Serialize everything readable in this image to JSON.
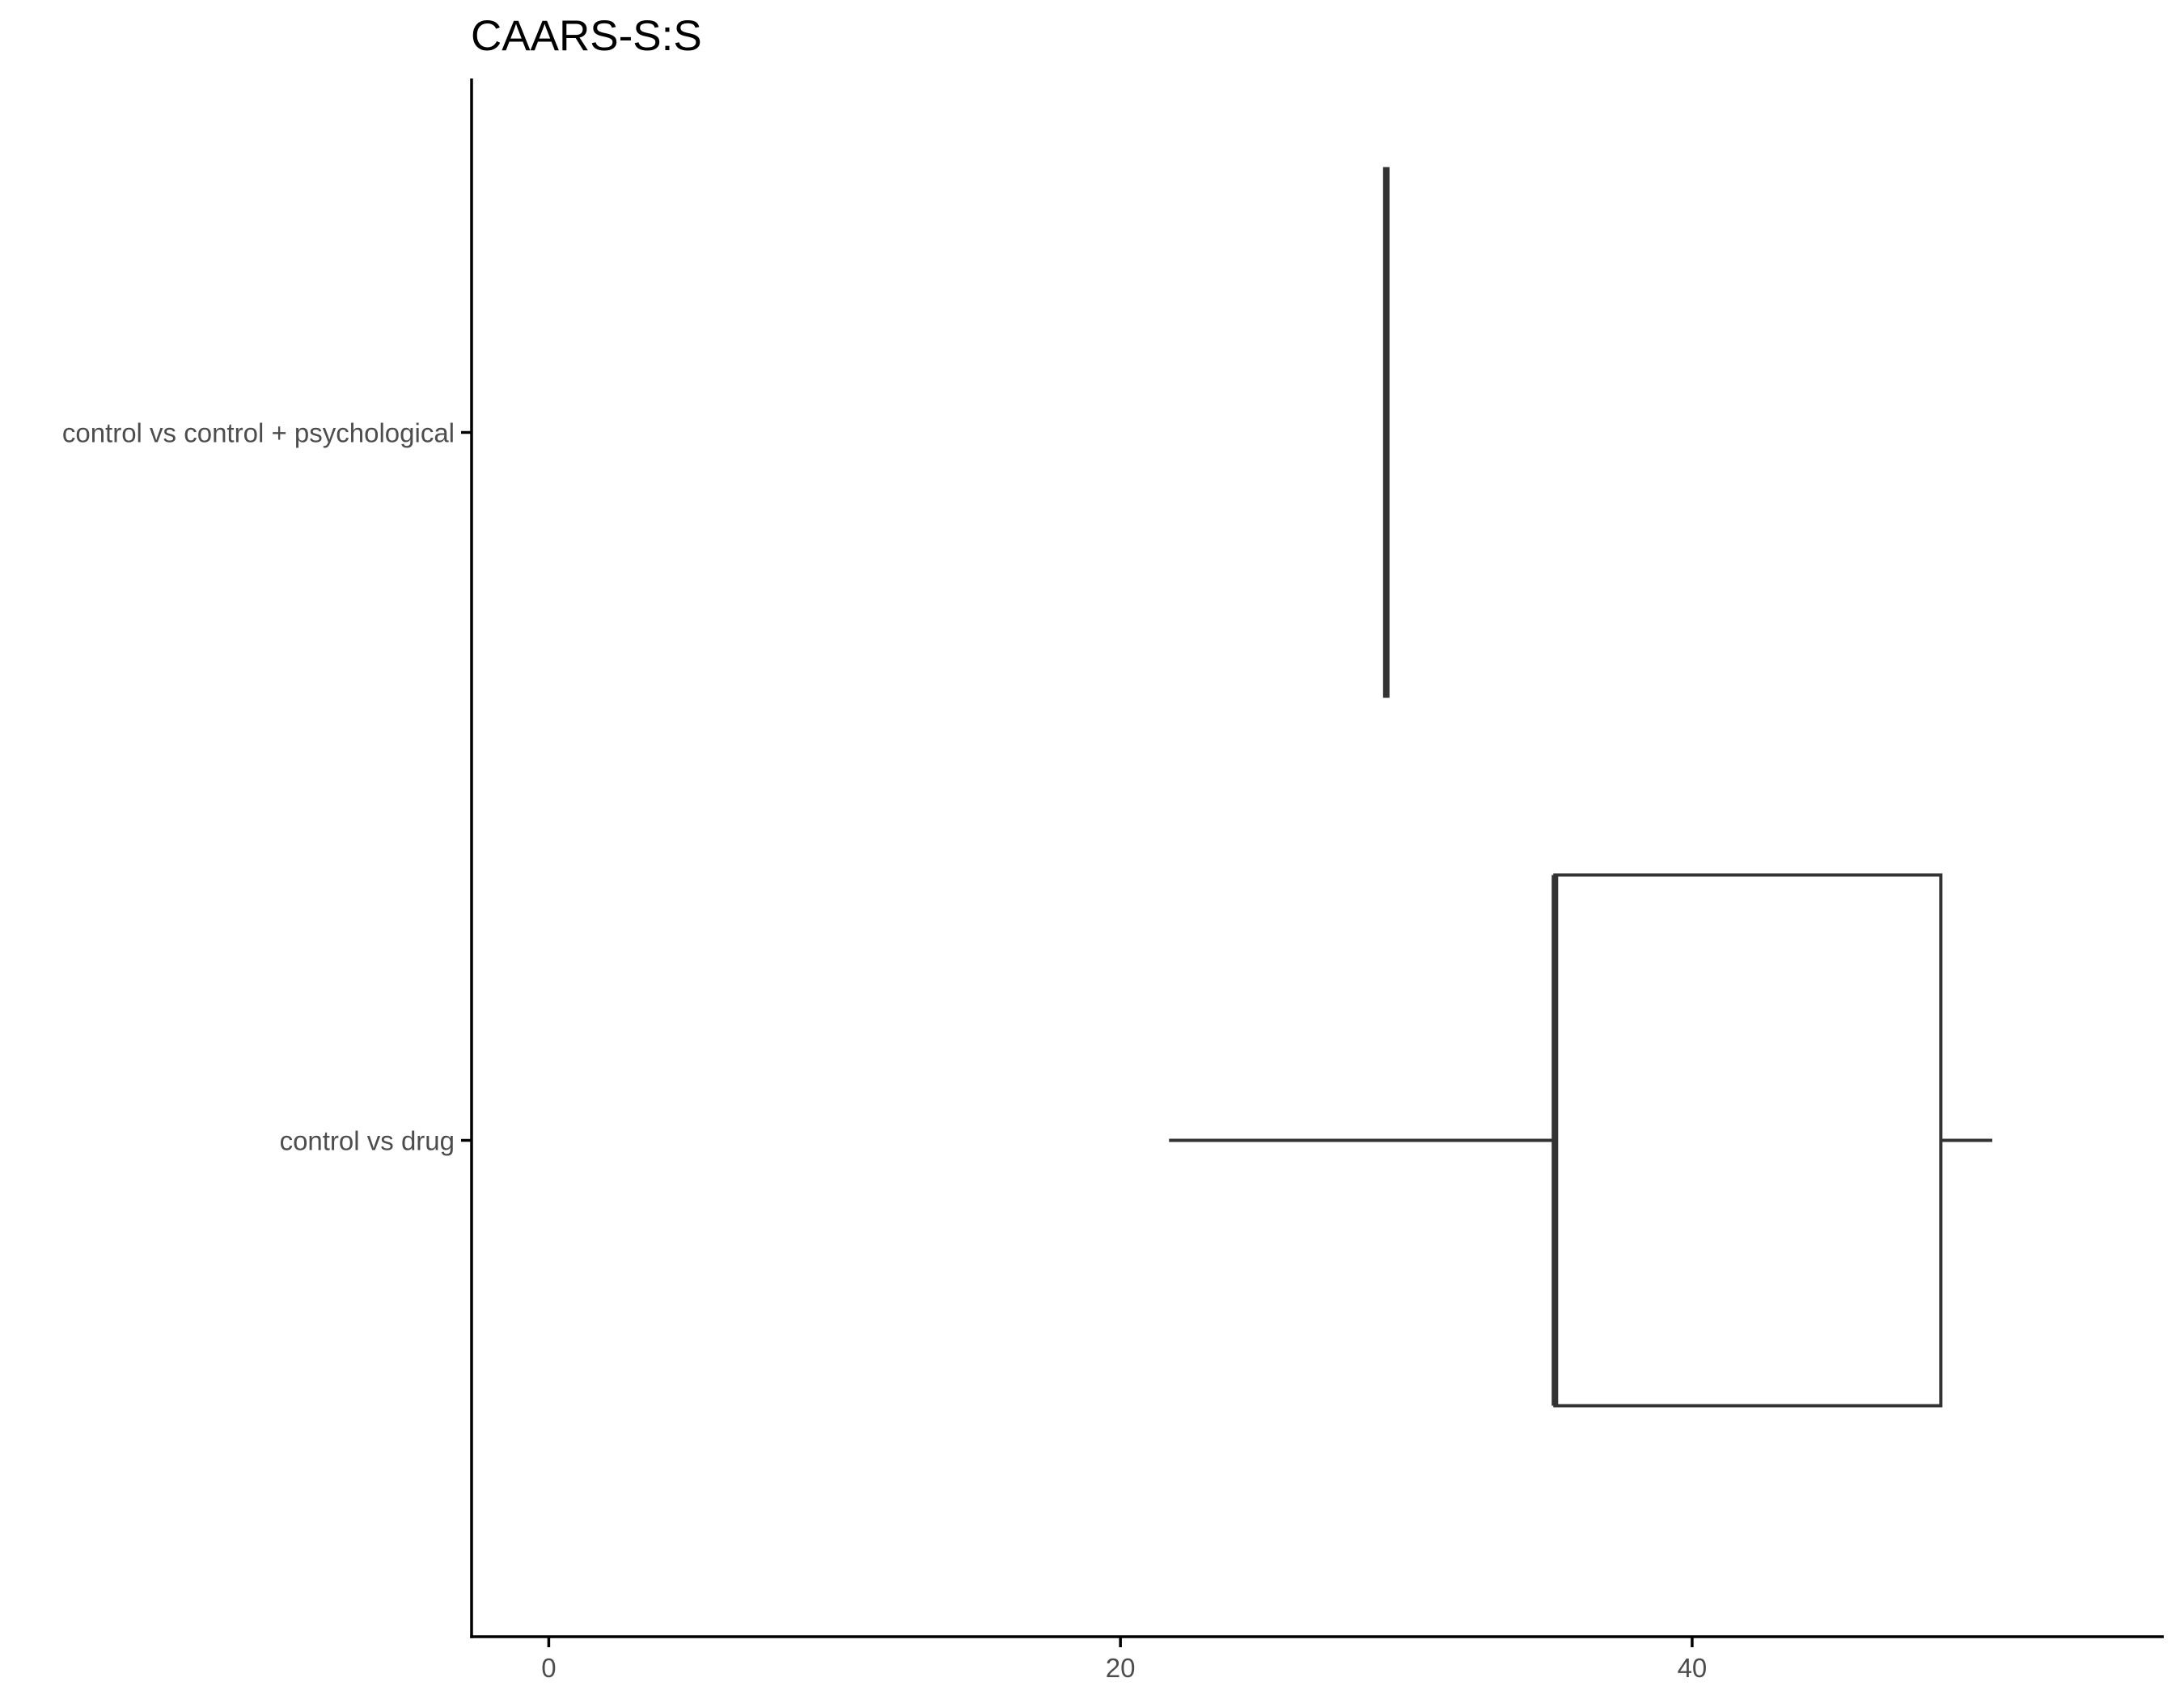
{
  "chart_data": {
    "type": "boxplot",
    "orientation": "horizontal",
    "title": "CAARS-S:S",
    "xlabel": "",
    "ylabel": "",
    "xlim": [
      -2.7,
      56.5
    ],
    "x_ticks": [
      0,
      20,
      40
    ],
    "categories": [
      "control vs control + psychological",
      "control vs drug"
    ],
    "boxes": [
      {
        "category": "control vs control + psychological",
        "min": 29.3,
        "q1": 29.3,
        "median": 29.3,
        "q3": 29.3,
        "max": 29.3
      },
      {
        "category": "control vs drug",
        "min": 21.7,
        "q1": 35.2,
        "median": 35.2,
        "q3": 48.7,
        "max": 50.5
      }
    ],
    "grid": false,
    "legend": "none"
  }
}
